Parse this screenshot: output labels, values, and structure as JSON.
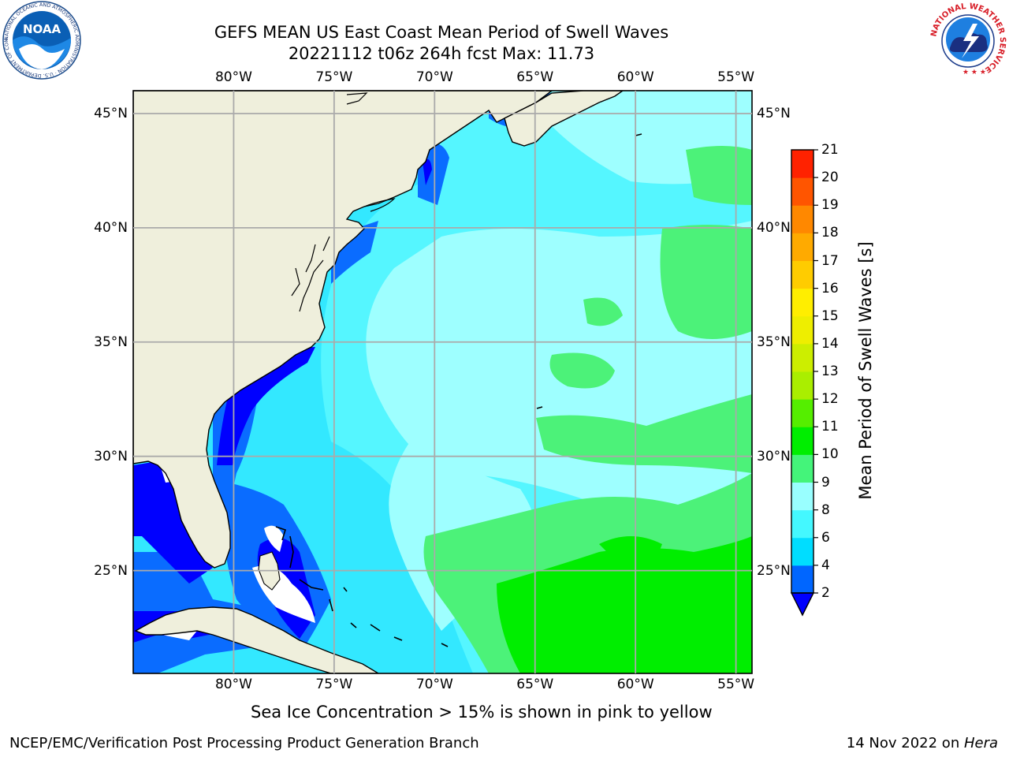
{
  "header": {
    "title_line1": "GEFS MEAN US East Coast Mean Period of Swell Waves",
    "title_line2": "20221112 t06z 264h fcst   Max: 11.73"
  },
  "logos": {
    "noaa_text": "NOAA",
    "noaa_ring": "NATIONAL OCEANIC AND ATMOSPHERIC ADMINISTRATION · U.S. DEPARTMENT OF COMMERCE",
    "nws_ring": "NATIONAL WEATHER SERVICE"
  },
  "map": {
    "lon_labels": [
      "80°W",
      "75°W",
      "70°W",
      "65°W",
      "60°W",
      "55°W"
    ],
    "lat_labels": [
      "45°N",
      "40°N",
      "35°N",
      "30°N",
      "25°N"
    ],
    "lon_values": [
      -80,
      -75,
      -70,
      -65,
      -60,
      -55
    ],
    "lat_values": [
      45,
      40,
      35,
      30,
      25
    ],
    "lon_range": [
      -85,
      -54.2
    ],
    "lat_range": [
      20.5,
      46
    ]
  },
  "colorbar": {
    "label": "Mean Period of Swell Waves [s]",
    "ticks": [
      "2",
      "4",
      "6",
      "8",
      "9",
      "10",
      "11",
      "12",
      "13",
      "14",
      "15",
      "16",
      "17",
      "18",
      "19",
      "20",
      "21"
    ],
    "colors": [
      "#0066ff",
      "#00ddff",
      "#44f8ff",
      "#99ffff",
      "#44f47a",
      "#00ee00",
      "#55ee00",
      "#aaee00",
      "#ccee00",
      "#eeee00",
      "#ffee00",
      "#ffcc00",
      "#ffaa00",
      "#ff8800",
      "#ff5500",
      "#ff2200"
    ],
    "under_color": "#0000ff"
  },
  "footer": {
    "note": "Sea Ice Concentration > 15% is shown in pink to yellow",
    "credit": "NCEP/EMC/Verification Post Processing Product Generation Branch",
    "date_prefix": "14 Nov 2022 on ",
    "machine": "Hera"
  }
}
